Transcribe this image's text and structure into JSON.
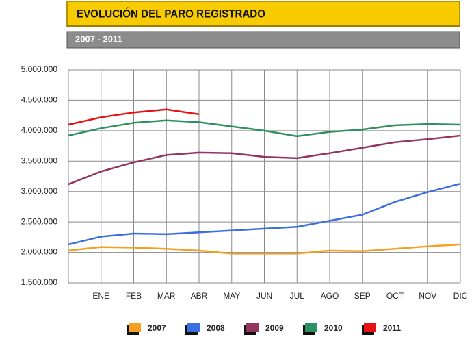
{
  "chart_data": {
    "type": "line",
    "title": "EVOLUCIÓN DEL PARO REGISTRADO",
    "subtitle": "2007 - 2011",
    "categories": [
      null,
      "ENE",
      "FEB",
      "MAR",
      "ABR",
      "MAY",
      "JUN",
      "JUL",
      "AGO",
      "SEP",
      "OCT",
      "NOV",
      "DIC"
    ],
    "series": [
      {
        "name": "2007",
        "color": "#f5a020",
        "values": [
          2030000,
          2090000,
          2080000,
          2060000,
          2030000,
          1980000,
          1980000,
          1980000,
          2030000,
          2020000,
          2060000,
          2100000,
          2130000
        ]
      },
      {
        "name": "2008",
        "color": "#3a6fe0",
        "values": [
          2130000,
          2260000,
          2310000,
          2300000,
          2330000,
          2360000,
          2390000,
          2420000,
          2520000,
          2620000,
          2830000,
          2990000,
          3130000
        ]
      },
      {
        "name": "2009",
        "color": "#943560",
        "values": [
          3120000,
          3330000,
          3480000,
          3600000,
          3640000,
          3630000,
          3570000,
          3550000,
          3630000,
          3720000,
          3810000,
          3860000,
          3920000
        ]
      },
      {
        "name": "2010",
        "color": "#2e9060",
        "values": [
          3920000,
          4040000,
          4130000,
          4170000,
          4140000,
          4070000,
          4000000,
          3910000,
          3980000,
          4020000,
          4090000,
          4110000,
          4100000
        ]
      },
      {
        "name": "2011",
        "color": "#e81010",
        "values": [
          4100000,
          4220000,
          4300000,
          4350000,
          4270000,
          null,
          null,
          null,
          null,
          null,
          null,
          null,
          null
        ]
      }
    ],
    "ylim": [
      1500000,
      5000000
    ],
    "yticks": [
      {
        "value": 1500000,
        "label": "1.500.000"
      },
      {
        "value": 2000000,
        "label": "2.000.000"
      },
      {
        "value": 2500000,
        "label": "2.500.000"
      },
      {
        "value": 3000000,
        "label": "3.000.000"
      },
      {
        "value": 3500000,
        "label": "3.500.000"
      },
      {
        "value": 4000000,
        "label": "4.000.000"
      },
      {
        "value": 4500000,
        "label": "4.500.000"
      },
      {
        "value": 5000000,
        "label": "5.000.000"
      }
    ],
    "grid": true
  }
}
